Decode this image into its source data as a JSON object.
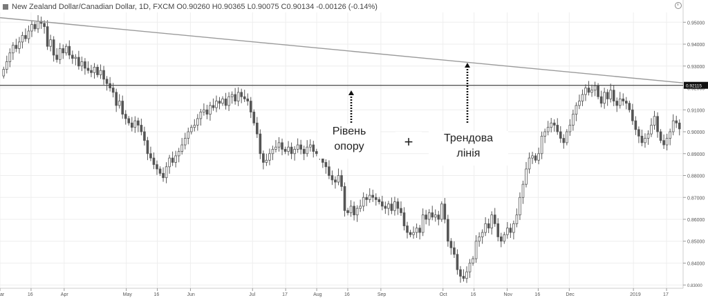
{
  "header": {
    "title": "New Zealand Dollar/Canadian Dollar, 1D, FXCM O0.90260 H0.90365 L0.90075 C0.90134 -0.00126 (-0.14%)"
  },
  "annotations": {
    "support_line1": "Рівень",
    "support_line2": "опору",
    "plus": "+",
    "trend_line1": "Трендова",
    "trend_line2": "лінія"
  },
  "colors": {
    "candle": "#555555",
    "trendline": "#9a9a9a",
    "support": "#444444",
    "grid": "#eeeeee"
  },
  "chart_data": {
    "type": "candlestick",
    "title": "New Zealand Dollar/Canadian Dollar, 1D, FXCM",
    "y_ticks": [
      "0.95000",
      "0.94000",
      "0.93000",
      "0.92000",
      "0.91000",
      "0.90000",
      "0.89000",
      "0.88000",
      "0.87000",
      "0.86000",
      "0.85000",
      "0.84000",
      "0.83000"
    ],
    "y_range": [
      0.8285,
      0.9545
    ],
    "x_ticks": [
      "ar",
      "16",
      "Apr",
      "May",
      "16",
      "Jun",
      "Jul",
      "17",
      "Aug",
      "16",
      "Sep",
      "Oct",
      "16",
      "Nov",
      "16",
      "Dec",
      "2019",
      "17"
    ],
    "x_range": [
      "2018-03-01",
      "2019-01-25"
    ],
    "current_price_label": "0.92115",
    "support_level": 0.9212,
    "trend_line": [
      {
        "date": "2018-03-01",
        "value": 0.9521
      },
      {
        "date": "2019-01-25",
        "value": 0.9223
      }
    ],
    "closes": [
      0.9285,
      0.932,
      0.936,
      0.9395,
      0.938,
      0.941,
      0.944,
      0.9425,
      0.946,
      0.949,
      0.947,
      0.9505,
      0.9495,
      0.948,
      0.939,
      0.942,
      0.935,
      0.933,
      0.938,
      0.936,
      0.939,
      0.935,
      0.9335,
      0.934,
      0.93,
      0.932,
      0.929,
      0.928,
      0.927,
      0.9295,
      0.926,
      0.928,
      0.924,
      0.922,
      0.92,
      0.918,
      0.912,
      0.914,
      0.908,
      0.906,
      0.904,
      0.902,
      0.905,
      0.903,
      0.9,
      0.896,
      0.89,
      0.888,
      0.885,
      0.883,
      0.881,
      0.879,
      0.884,
      0.888,
      0.886,
      0.889,
      0.891,
      0.894,
      0.897,
      0.9,
      0.902,
      0.903,
      0.906,
      0.909,
      0.91,
      0.908,
      0.912,
      0.911,
      0.914,
      0.913,
      0.915,
      0.912,
      0.916,
      0.917,
      0.914,
      0.918,
      0.916,
      0.915,
      0.914,
      0.909,
      0.904,
      0.899,
      0.89,
      0.886,
      0.887,
      0.89,
      0.892,
      0.893,
      0.895,
      0.892,
      0.891,
      0.893,
      0.89,
      0.892,
      0.894,
      0.892,
      0.89,
      0.893,
      0.894,
      0.891,
      0.89,
      0.889,
      0.886,
      0.884,
      0.88,
      0.878,
      0.877,
      0.88,
      0.875,
      0.864,
      0.863,
      0.866,
      0.862,
      0.865,
      0.866,
      0.87,
      0.869,
      0.871,
      0.87,
      0.869,
      0.868,
      0.866,
      0.865,
      0.867,
      0.864,
      0.868,
      0.865,
      0.863,
      0.857,
      0.854,
      0.853,
      0.854,
      0.856,
      0.854,
      0.862,
      0.86,
      0.863,
      0.861,
      0.862,
      0.86,
      0.867,
      0.86,
      0.85,
      0.847,
      0.844,
      0.837,
      0.834,
      0.833,
      0.836,
      0.84,
      0.842,
      0.85,
      0.852,
      0.854,
      0.858,
      0.856,
      0.862,
      0.858,
      0.852,
      0.85,
      0.853,
      0.856,
      0.854,
      0.858,
      0.862,
      0.87,
      0.876,
      0.883,
      0.888,
      0.889,
      0.887,
      0.89,
      0.898,
      0.9,
      0.902,
      0.904,
      0.903,
      0.9,
      0.897,
      0.895,
      0.9,
      0.903,
      0.908,
      0.912,
      0.914,
      0.917,
      0.92,
      0.918,
      0.919,
      0.921,
      0.916,
      0.913,
      0.918,
      0.915,
      0.919,
      0.914,
      0.912,
      0.915,
      0.914,
      0.913,
      0.91,
      0.905,
      0.901,
      0.898,
      0.895,
      0.897,
      0.899,
      0.903,
      0.907,
      0.9,
      0.896,
      0.894,
      0.897,
      0.9,
      0.905,
      0.904,
      0.9013
    ]
  }
}
